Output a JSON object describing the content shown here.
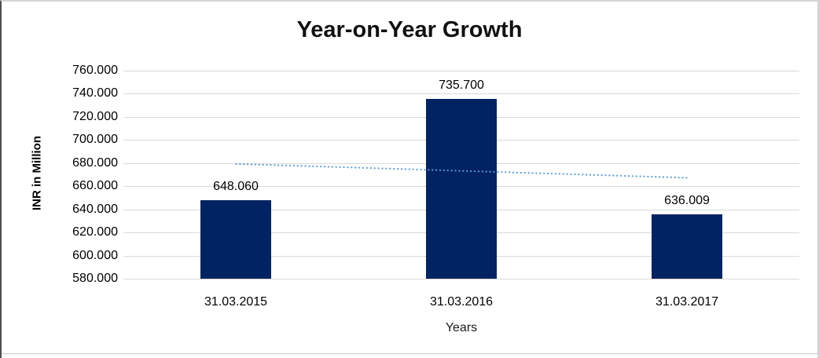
{
  "chart_data": {
    "type": "bar",
    "title": "Year-on-Year Growth",
    "xlabel": "Years",
    "ylabel": "INR in Million",
    "categories": [
      "31.03.2015",
      "31.03.2016",
      "31.03.2017"
    ],
    "values": [
      648.06,
      735.7,
      636.009
    ],
    "value_labels": [
      "648.060",
      "735.700",
      "636.009"
    ],
    "ylim": [
      580,
      760
    ],
    "ytick_step": 20,
    "ytick_labels": [
      "580.000",
      "600.000",
      "620.000",
      "640.000",
      "660.000",
      "680.000",
      "700.000",
      "720.000",
      "740.000",
      "760.000"
    ],
    "grid": true,
    "legend": false,
    "bar_color": "#022361",
    "gridline_color": "#d9d9d9",
    "axis_text_color": "#000000",
    "trendline": {
      "style": "dotted",
      "color": "#5b9bd5",
      "start_value": 679.3,
      "end_value": 667.3
    }
  }
}
